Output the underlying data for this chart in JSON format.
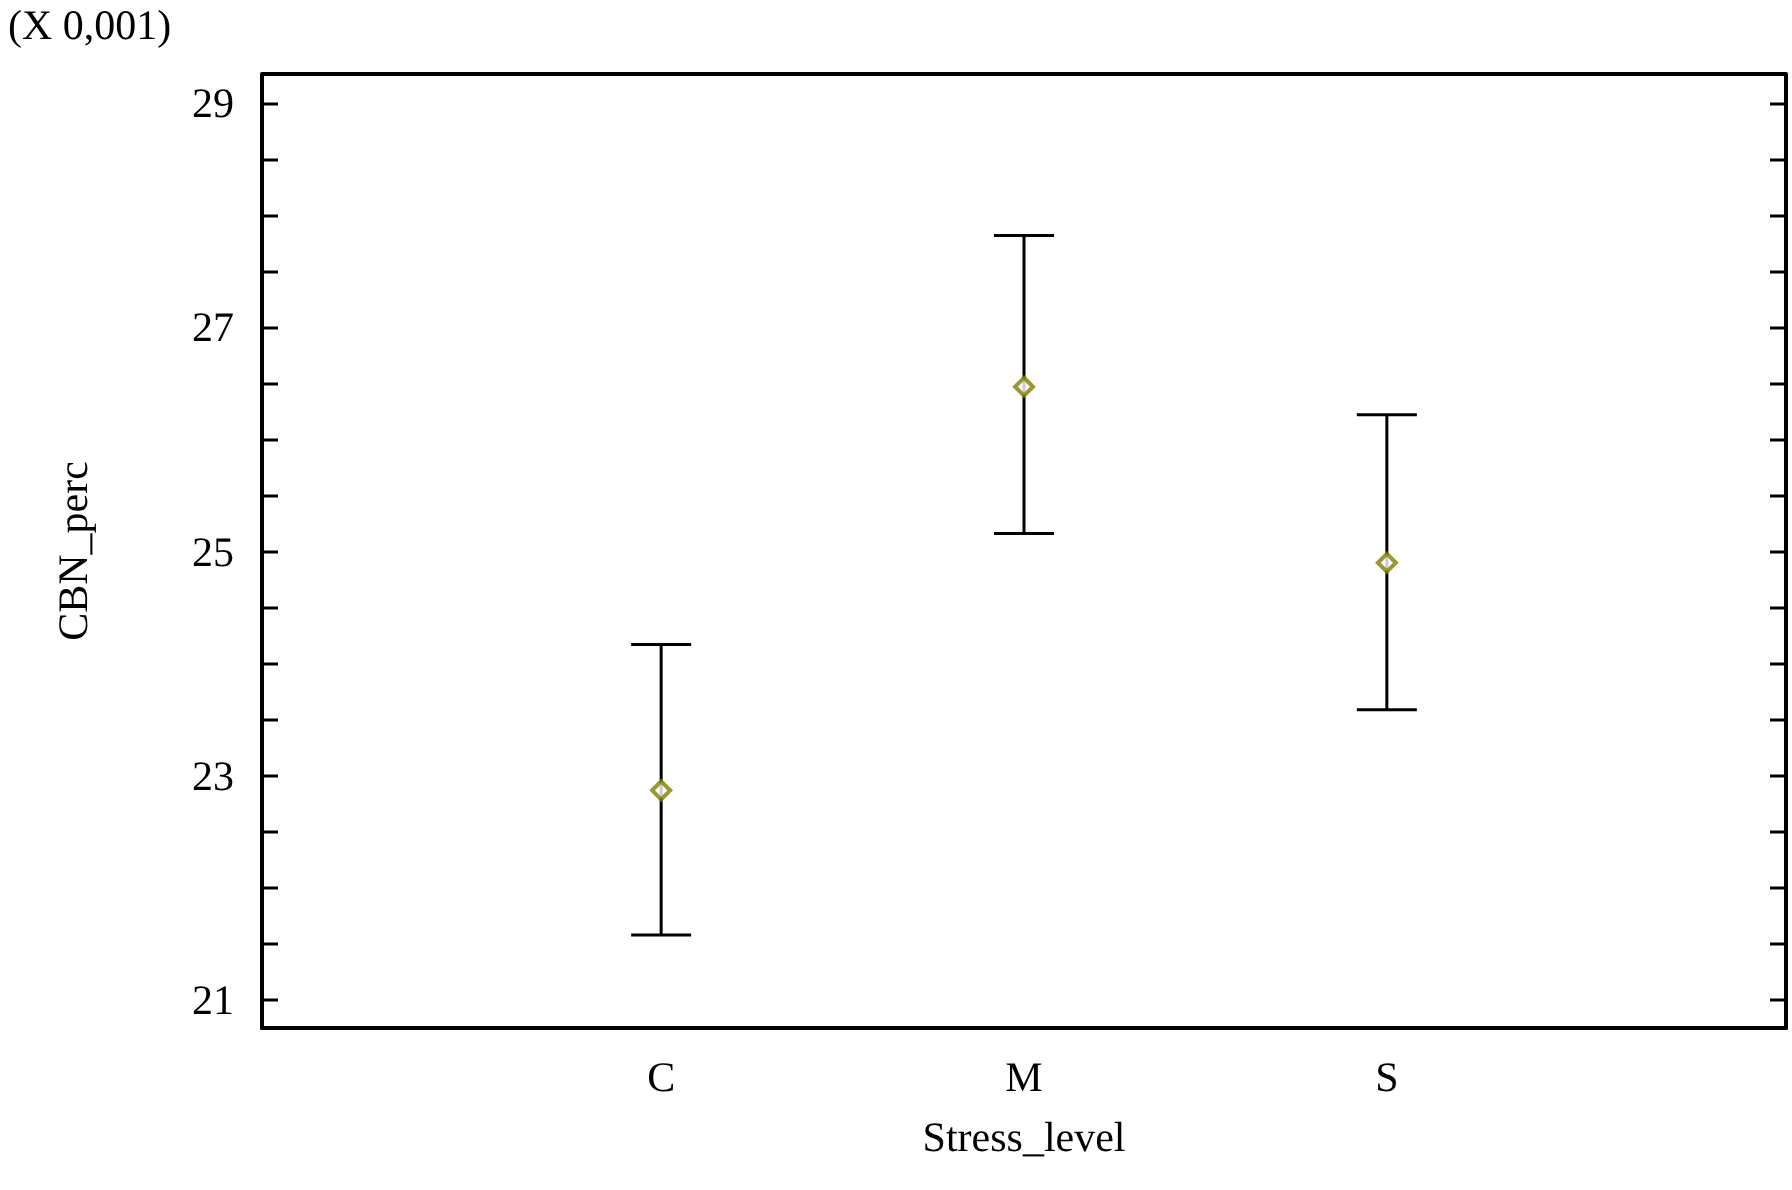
{
  "chart_data": {
    "type": "scatter",
    "xlabel": "Stress_level",
    "ylabel": "CBN_perc",
    "annotations": [
      "(X 0,001)"
    ],
    "categories": [
      "C",
      "M",
      "S"
    ],
    "series": [
      {
        "color": "#808000",
        "values": [
          22.87,
          26.47,
          24.9
        ],
        "errors": [
          [
            21.58,
            24.17
          ],
          [
            25.16,
            27.82
          ],
          [
            23.59,
            26.22
          ]
        ]
      }
    ],
    "ylim": [
      20.75,
      29.26
    ],
    "yticks": [
      21,
      {
        "value": 21.5,
        "label": null
      },
      {
        "value": 22,
        "label": null
      },
      {
        "value": 22.5,
        "label": null
      },
      23,
      {
        "value": 23.5,
        "label": null
      },
      {
        "value": 24,
        "label": null
      },
      {
        "value": 24.5,
        "label": null
      },
      25,
      {
        "value": 25.5,
        "label": null
      },
      {
        "value": 26,
        "label": null
      },
      {
        "value": 26.5,
        "label": null
      },
      27,
      {
        "value": 27.5,
        "label": null
      },
      {
        "value": 28,
        "label": null
      },
      {
        "value": 28.5,
        "label": null
      },
      29
    ],
    "marker": "diamond",
    "grid": false
  }
}
